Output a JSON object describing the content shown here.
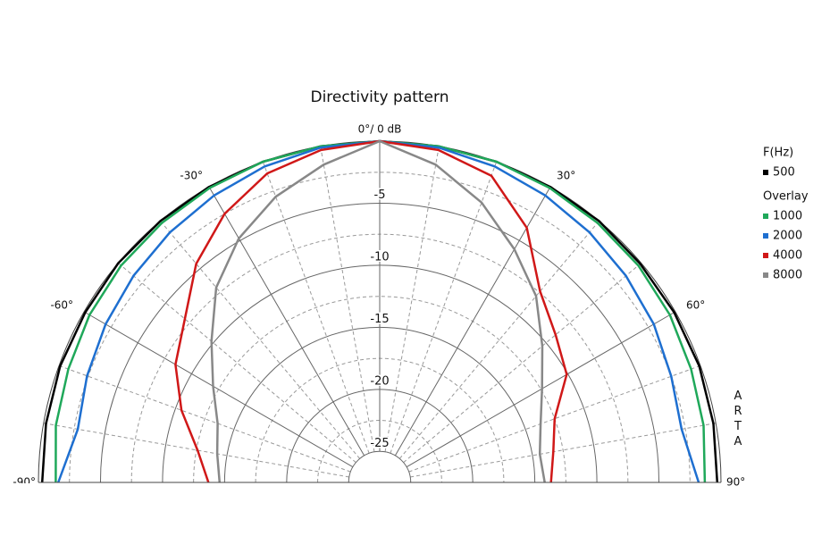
{
  "chart_data": {
    "type": "polar",
    "title": "Directivity pattern",
    "x": [
      -90,
      -80,
      -70,
      -60,
      -50,
      -40,
      -30,
      -20,
      -10,
      0,
      10,
      20,
      30,
      40,
      50,
      60,
      70,
      80,
      90
    ],
    "series": [
      {
        "name": "500",
        "color": "#000000",
        "values": [
          -0.3,
          -0.2,
          -0.1,
          -0.1,
          0,
          0,
          0,
          0,
          0,
          0,
          0,
          0,
          0,
          0,
          -0.1,
          -0.1,
          -0.1,
          -0.2,
          -0.3
        ]
      },
      {
        "name": "1000",
        "color": "#1fa85a",
        "values": [
          -1.4,
          -1.0,
          -0.8,
          -0.5,
          -0.3,
          -0.2,
          -0.1,
          0,
          0,
          0,
          0,
          0,
          -0.1,
          -0.2,
          -0.3,
          -0.5,
          -0.8,
          -1.0,
          -1.3
        ]
      },
      {
        "name": "2000",
        "color": "#1e6fd0",
        "values": [
          -1.6,
          -2.8,
          -2.4,
          -2.0,
          -1.6,
          -1.2,
          -0.8,
          -0.4,
          -0.1,
          0,
          -0.1,
          -0.4,
          -0.8,
          -1.2,
          -1.6,
          -2.0,
          -2.5,
          -2.8,
          -1.8
        ]
      },
      {
        "name": "4000",
        "color": "#d01818",
        "values": [
          -13.7,
          -12.6,
          -10.5,
          -8.5,
          -7.0,
          -4.5,
          -2.5,
          -1.0,
          -0.3,
          0,
          -0.3,
          -1.2,
          -3.8,
          -7.4,
          -9.0,
          -10.1,
          -12.5,
          -13.3,
          -13.7
        ]
      },
      {
        "name": "8000",
        "color": "#888888",
        "values": [
          -14.6,
          -14.2,
          -13.6,
          -12.0,
          -9.8,
          -7.0,
          -4.8,
          -3.0,
          -1.5,
          0,
          -1.5,
          -3.5,
          -5.8,
          -7.9,
          -10.4,
          -12.4,
          -13.7,
          -14.4,
          -14.2
        ]
      }
    ],
    "legend_title": "F(Hz)",
    "overlay_title": "Overlay",
    "rlim": [
      -27.5,
      0
    ],
    "rticks": [
      -25,
      -20,
      -15,
      -10,
      -5
    ],
    "rticks_minor": [
      -22.5,
      -17.5,
      -12.5,
      -7.5,
      -2.5
    ],
    "thetaticks": [
      {
        "value": -90,
        "label": "-90°"
      },
      {
        "value": -60,
        "label": "-60°"
      },
      {
        "value": -30,
        "label": "-30°"
      },
      {
        "value": 0,
        "label": "0°/ 0 dB"
      },
      {
        "value": 30,
        "label": "30°"
      },
      {
        "value": 60,
        "label": "60°"
      },
      {
        "value": 90,
        "label": "90°"
      }
    ],
    "thetaticks_minor": [
      -80,
      -70,
      -50,
      -40,
      -20,
      -10,
      10,
      20,
      40,
      50,
      70,
      80
    ],
    "watermark": "ARTA"
  }
}
